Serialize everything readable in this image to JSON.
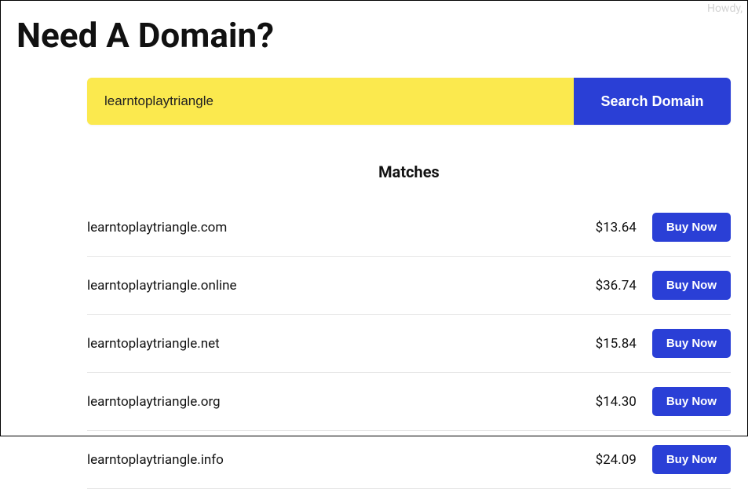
{
  "greeting": "Howdy,",
  "page_title": "Need A Domain?",
  "search": {
    "value": "learntoplaytriangle",
    "button_label": "Search Domain",
    "input_bg": "#fbe94e",
    "button_bg": "#2a3fd6"
  },
  "matches_heading": "Matches",
  "buy_label": "Buy Now",
  "results": [
    {
      "domain": "learntoplaytriangle.com",
      "price": "$13.64"
    },
    {
      "domain": "learntoplaytriangle.online",
      "price": "$36.74"
    },
    {
      "domain": "learntoplaytriangle.net",
      "price": "$15.84"
    },
    {
      "domain": "learntoplaytriangle.org",
      "price": "$14.30"
    },
    {
      "domain": "learntoplaytriangle.info",
      "price": "$24.09"
    }
  ],
  "colors": {
    "accent": "#2a3fd6",
    "highlight": "#fbe94e",
    "text": "#111111",
    "divider": "#e6e6e6",
    "background": "#ffffff"
  }
}
